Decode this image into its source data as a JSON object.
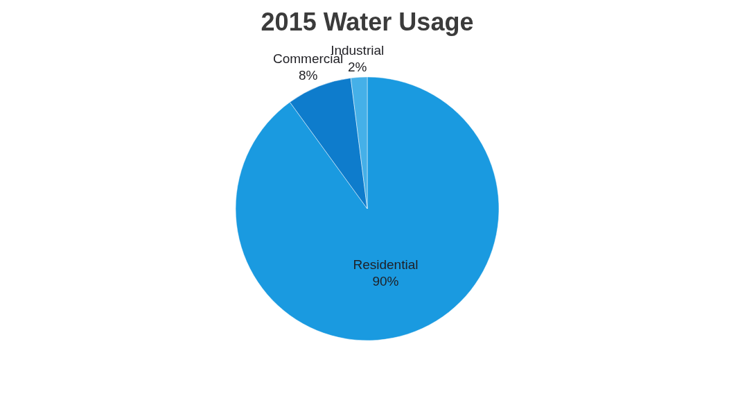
{
  "chart_data": {
    "type": "pie",
    "title": "2015 Water Usage",
    "categories": [
      "Residential",
      "Commercial",
      "Industrial"
    ],
    "values": [
      90,
      8,
      2
    ],
    "colors": [
      "#1a9ae0",
      "#0e7ccc",
      "#45b0e8"
    ],
    "value_labels": [
      "90%",
      "8%",
      "2%"
    ],
    "legend": false
  }
}
